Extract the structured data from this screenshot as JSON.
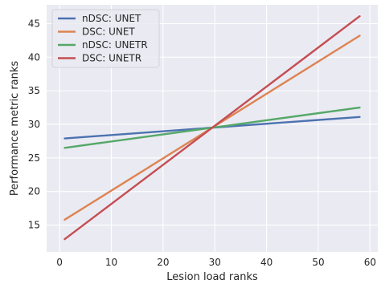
{
  "chart_data": {
    "type": "line",
    "title": "",
    "xlabel": "Lesion load ranks",
    "ylabel": "Performance metric ranks",
    "xlim": [
      -2.5,
      61.5
    ],
    "ylim": [
      11.0,
      47.8
    ],
    "xticks": [
      0,
      10,
      20,
      30,
      40,
      50,
      60
    ],
    "yticks": [
      15,
      20,
      25,
      30,
      35,
      40,
      45
    ],
    "grid": true,
    "legend_position": "upper-left",
    "background_color": "#eaeaf2",
    "grid_color": "#ffffff",
    "series": [
      {
        "name": "nDSC: UNET",
        "color": "#4c72b0",
        "x": [
          1,
          58
        ],
        "y": [
          27.9,
          31.1
        ]
      },
      {
        "name": "DSC: UNET",
        "color": "#dd8452",
        "x": [
          1,
          58
        ],
        "y": [
          15.8,
          43.2
        ]
      },
      {
        "name": "nDSC: UNETR",
        "color": "#55a868",
        "x": [
          1,
          58
        ],
        "y": [
          26.5,
          32.5
        ]
      },
      {
        "name": "DSC: UNETR",
        "color": "#c44e52",
        "x": [
          1,
          58
        ],
        "y": [
          12.9,
          46.1
        ]
      }
    ]
  }
}
